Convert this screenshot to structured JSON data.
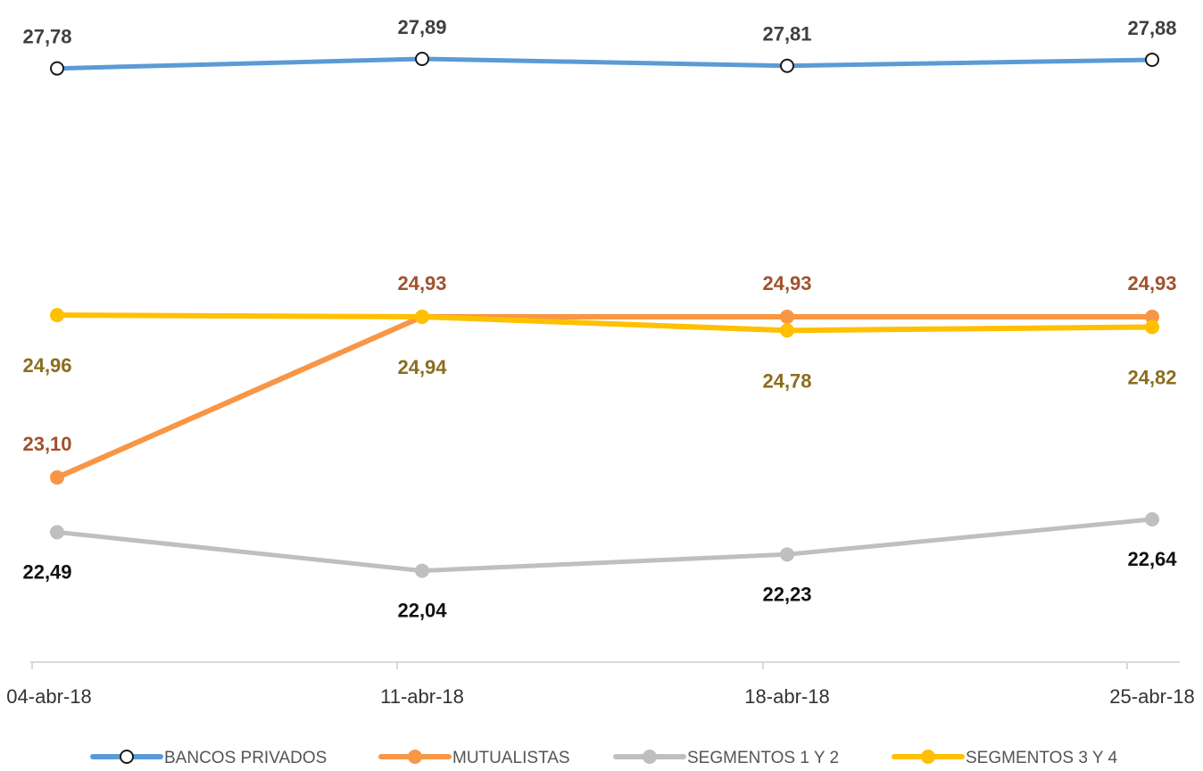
{
  "chart_data": {
    "type": "line",
    "categories": [
      "04-abr-18",
      "11-abr-18",
      "18-abr-18",
      "25-abr-18"
    ],
    "series": [
      {
        "name": "BANCOS PRIVADOS",
        "values": [
          27.78,
          27.89,
          27.81,
          27.88
        ],
        "labels": [
          "27,78",
          "27,89",
          "27,81",
          "27,88"
        ],
        "color": "#5B9BD5",
        "marker": "hollow-circle",
        "marker_color": "#1a1a1a",
        "label_color": "#404040",
        "label_position": "above"
      },
      {
        "name": "MUTUALISTAS",
        "values": [
          23.1,
          24.93,
          24.93,
          24.93
        ],
        "labels": [
          "23,10",
          "24,93",
          "24,93",
          "24,93"
        ],
        "color": "#F79646",
        "marker": "filled-circle",
        "marker_color": "#F79646",
        "label_color": "#A0522D",
        "label_position": "above"
      },
      {
        "name": "SEGMENTOS 1 Y 2",
        "values": [
          22.49,
          22.04,
          22.23,
          22.64
        ],
        "labels": [
          "22,49",
          "22,04",
          "22,23",
          "22,64"
        ],
        "color": "#BFBFBF",
        "marker": "filled-circle",
        "marker_color": "#BFBFBF",
        "label_color": "#111111",
        "label_position": "below"
      },
      {
        "name": "SEGMENTOS 3 Y 4",
        "values": [
          24.96,
          24.94,
          24.78,
          24.82
        ],
        "labels": [
          "24,96",
          "24,94",
          "24,78",
          "24,82"
        ],
        "color": "#FFC000",
        "marker": "filled-circle",
        "marker_color": "#FFC000",
        "label_color": "#8A6D1E",
        "label_position": "below"
      }
    ],
    "grid": false,
    "legend": "bottom",
    "axis_color": "#D9D9D9"
  }
}
